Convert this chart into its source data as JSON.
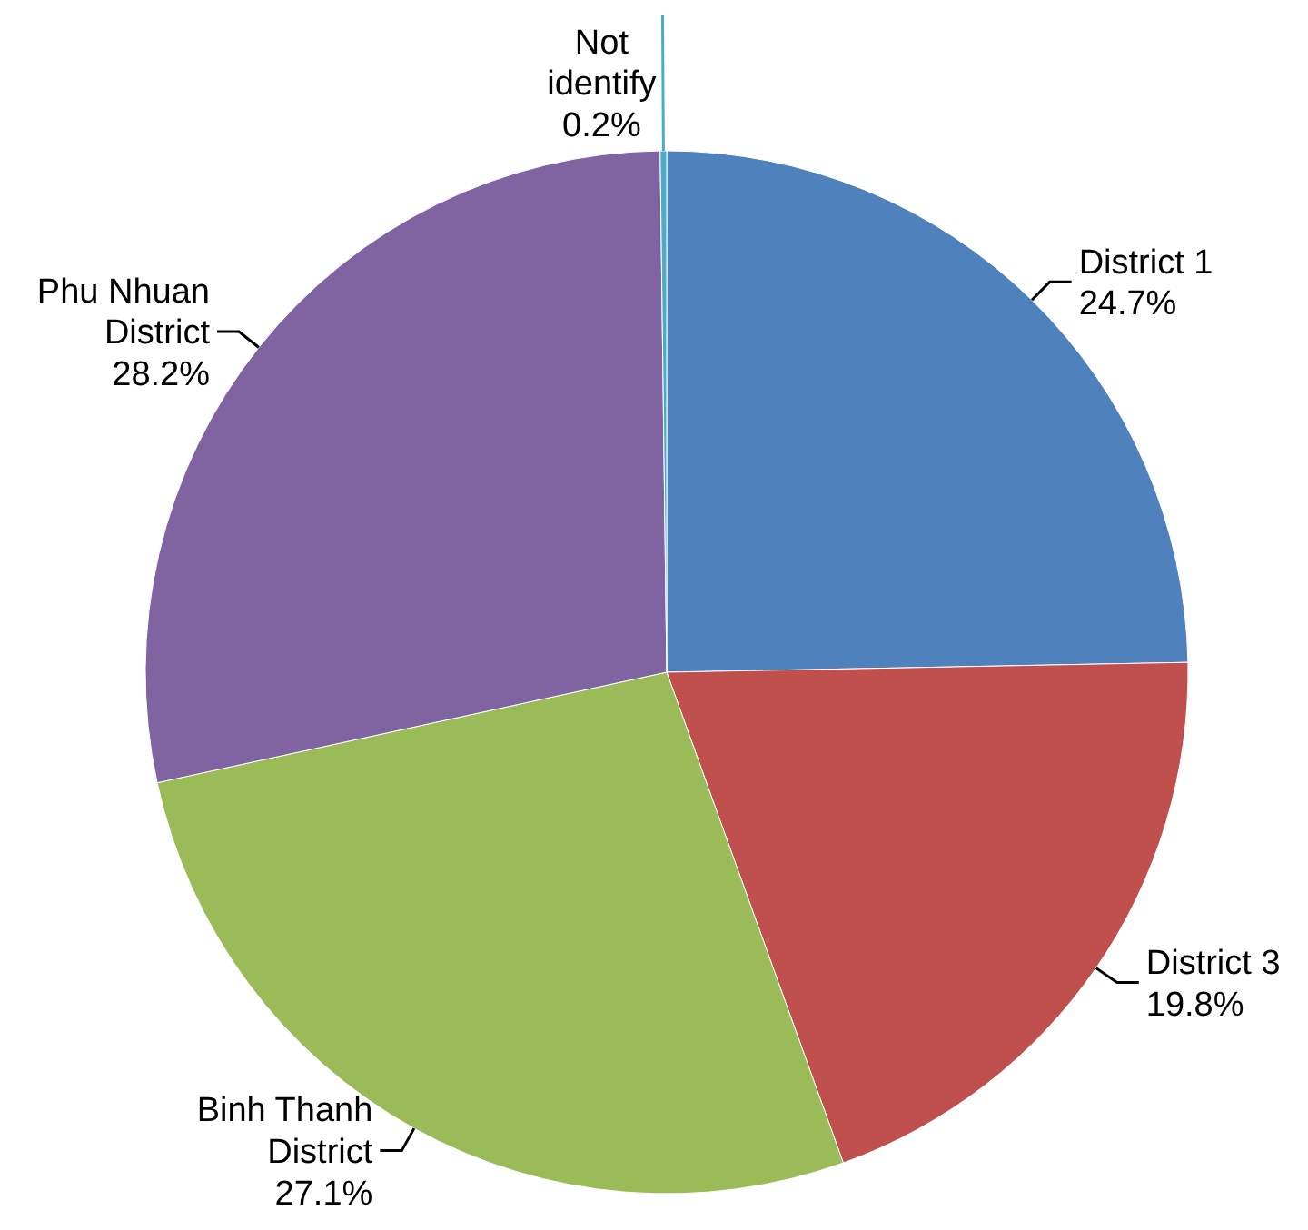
{
  "chart_data": {
    "type": "pie",
    "categories": [
      "District 1",
      "District 3",
      "Binh Thanh District",
      "Phu Nhuan District",
      "Not identify"
    ],
    "values": [
      24.7,
      19.8,
      27.1,
      28.2,
      0.2
    ],
    "colors": [
      "#4f81bd",
      "#c0504d",
      "#9bbb59",
      "#8064a2",
      "#4bacc6"
    ],
    "value_labels": [
      "24.7%",
      "19.8%",
      "27.1%",
      "28.2%",
      "0.2%"
    ]
  }
}
